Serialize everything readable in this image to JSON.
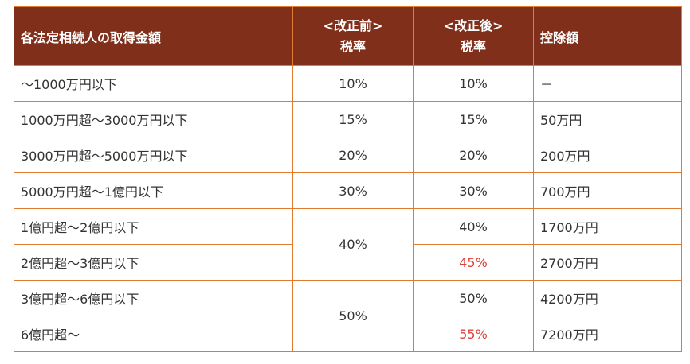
{
  "colors": {
    "header_bg": "#7f2f1a",
    "border": "#e07b30",
    "highlight": "#e0403a"
  },
  "header": {
    "amount": "各法定相続人の取得金額",
    "before_line1": "<改正前>",
    "before_line2": "税率",
    "after_line1": "<改正後>",
    "after_line2": "税率",
    "deduction": "控除額"
  },
  "rows": [
    {
      "amount": "～1000万円以下",
      "before": "10%",
      "after": "10%",
      "deduction": "－",
      "changed": false
    },
    {
      "amount": "1000万円超～3000万円以下",
      "before": "15%",
      "after": "15%",
      "deduction": "50万円",
      "changed": false
    },
    {
      "amount": "3000万円超～5000万円以下",
      "before": "20%",
      "after": "20%",
      "deduction": "200万円",
      "changed": false
    },
    {
      "amount": "5000万円超～1億円以下",
      "before": "30%",
      "after": "30%",
      "deduction": "700万円",
      "changed": false
    },
    {
      "amount": "1億円超～2億円以下",
      "before": "40%",
      "after": "40%",
      "deduction": "1700万円",
      "changed": false
    },
    {
      "amount": "2億円超～3億円以下",
      "before": null,
      "after": "45%",
      "deduction": "2700万円",
      "changed": true
    },
    {
      "amount": "3億円超～6億円以下",
      "before": "50%",
      "after": "50%",
      "deduction": "4200万円",
      "changed": false
    },
    {
      "amount": "6億円超～",
      "before": null,
      "after": "55%",
      "deduction": "7200万円",
      "changed": true
    }
  ]
}
